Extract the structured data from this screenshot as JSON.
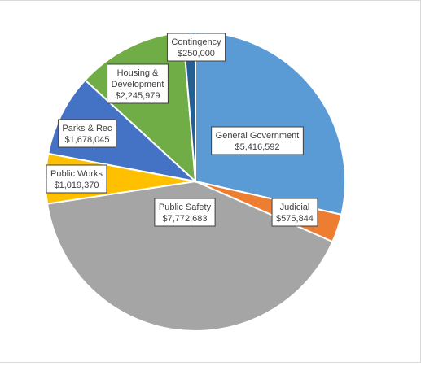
{
  "chart_data": {
    "type": "pie",
    "title": "",
    "slices": [
      {
        "name": "General Government",
        "value": 5416592,
        "label": "$5,416,592",
        "color": "#5B9BD5"
      },
      {
        "name": "Judicial",
        "value": 575844,
        "label": "$575,844",
        "color": "#ED7D31"
      },
      {
        "name": "Public Safety",
        "value": 7772683,
        "label": "$7,772,683",
        "color": "#A5A5A5"
      },
      {
        "name": "Public Works",
        "value": 1019370,
        "label": "$1,019,370",
        "color": "#FFC000"
      },
      {
        "name": "Parks & Rec",
        "value": 1678045,
        "label": "$1,678,045",
        "color": "#4472C4"
      },
      {
        "name": "Housing & Development",
        "label_lines": [
          "Housing &",
          "Development"
        ],
        "value": 2245979,
        "label": "$2,245,979",
        "color": "#70AD47"
      },
      {
        "name": "Contingency",
        "value": 250000,
        "label": "$250,000",
        "color": "#255E91"
      }
    ],
    "start_angle": "12 o'clock",
    "direction": "clockwise",
    "legend": "none"
  }
}
